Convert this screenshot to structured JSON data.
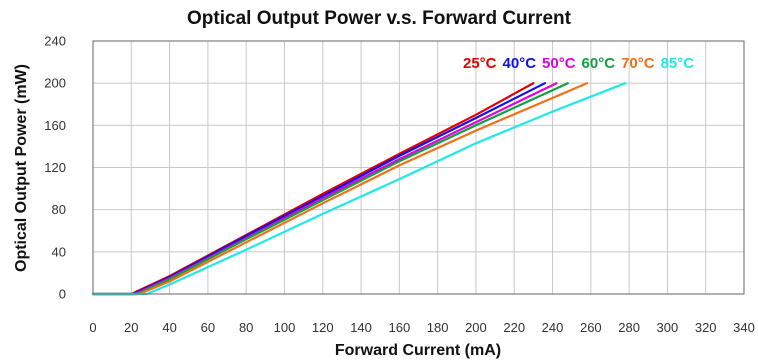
{
  "chart_data": {
    "type": "line",
    "title": "Optical Output Power v.s. Forward Current",
    "xlabel": "Forward Current (mA)",
    "ylabel": "Optical Output Power (mW)",
    "xlim": [
      0,
      340
    ],
    "ylim": [
      0,
      240
    ],
    "xticks": [
      0,
      20,
      40,
      60,
      80,
      100,
      120,
      140,
      160,
      180,
      200,
      220,
      240,
      260,
      280,
      300,
      320,
      340
    ],
    "yticks": [
      0,
      40,
      80,
      120,
      160,
      200,
      240
    ],
    "grid": true,
    "legend_position": "top-right",
    "series": [
      {
        "name": "25°C",
        "color": "#e00000",
        "x": [
          0,
          20,
          40,
          80,
          120,
          160,
          200,
          230
        ],
        "y": [
          0,
          0,
          17,
          56,
          95,
          133,
          170,
          200
        ]
      },
      {
        "name": "40°C",
        "color": "#1010e8",
        "x": [
          0,
          21,
          40,
          80,
          120,
          160,
          200,
          236
        ],
        "y": [
          0,
          0,
          16,
          55,
          93,
          131,
          167,
          200
        ]
      },
      {
        "name": "50°C",
        "color": "#e000e0",
        "x": [
          0,
          22,
          40,
          80,
          120,
          160,
          200,
          242
        ],
        "y": [
          0,
          0,
          15,
          53,
          91,
          128,
          163,
          200
        ]
      },
      {
        "name": "60°C",
        "color": "#10a040",
        "x": [
          0,
          23,
          40,
          80,
          120,
          160,
          200,
          248
        ],
        "y": [
          0,
          0,
          14,
          52,
          89,
          126,
          160,
          200
        ]
      },
      {
        "name": "70°C",
        "color": "#f07018",
        "x": [
          0,
          24,
          40,
          80,
          120,
          160,
          200,
          258
        ],
        "y": [
          0,
          0,
          12,
          49,
          86,
          122,
          155,
          200
        ]
      },
      {
        "name": "85°C",
        "color": "#20e8e8",
        "x": [
          0,
          28,
          40,
          80,
          120,
          160,
          200,
          240,
          278
        ],
        "y": [
          0,
          0,
          9,
          42,
          76,
          109,
          143,
          173,
          200
        ]
      }
    ]
  }
}
